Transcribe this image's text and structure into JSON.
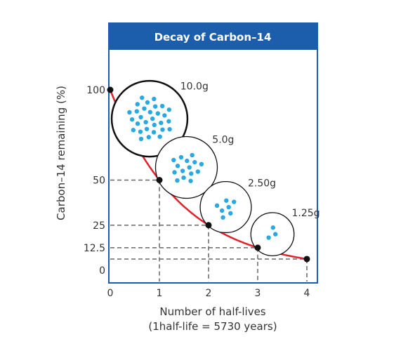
{
  "chart_data": {
    "type": "line",
    "title": "Decay of Carbon–14",
    "xlabel": "Number of half-lives",
    "xlabel_sub": "(1half-life = 5730 years)",
    "ylabel": "Carbon–14 remaining (%)",
    "x_ticks": [
      "0",
      "1",
      "2",
      "3",
      "4"
    ],
    "y_ticks": [
      {
        "value": 100,
        "label": "100"
      },
      {
        "value": 50,
        "label": "50"
      },
      {
        "value": 25,
        "label": "25"
      },
      {
        "value": 12.5,
        "label": "12.5"
      },
      {
        "value": 0,
        "label": "0"
      }
    ],
    "xlim": [
      0,
      4
    ],
    "ylim": [
      0,
      100
    ],
    "points": [
      {
        "x": 0,
        "y": 100
      },
      {
        "x": 1,
        "y": 50
      },
      {
        "x": 2,
        "y": 25
      },
      {
        "x": 3,
        "y": 12.5
      },
      {
        "x": 4,
        "y": 6.25
      }
    ],
    "samples": [
      {
        "label": "10.0g",
        "x": 0.8,
        "y": 84,
        "dots": 30
      },
      {
        "label": "5.0g",
        "x": 1.55,
        "y": 57,
        "dots": 15
      },
      {
        "label": "2.50g",
        "x": 2.35,
        "y": 35,
        "dots": 7
      },
      {
        "label": "1.25g",
        "x": 3.3,
        "y": 20,
        "dots": 3
      }
    ],
    "colors": {
      "title_bar": "#1c5eac",
      "frame": "#1c5eac",
      "curve": "#e0232b",
      "dashes": "#666666",
      "dots": "#29a9e1",
      "points": "#111111"
    }
  }
}
